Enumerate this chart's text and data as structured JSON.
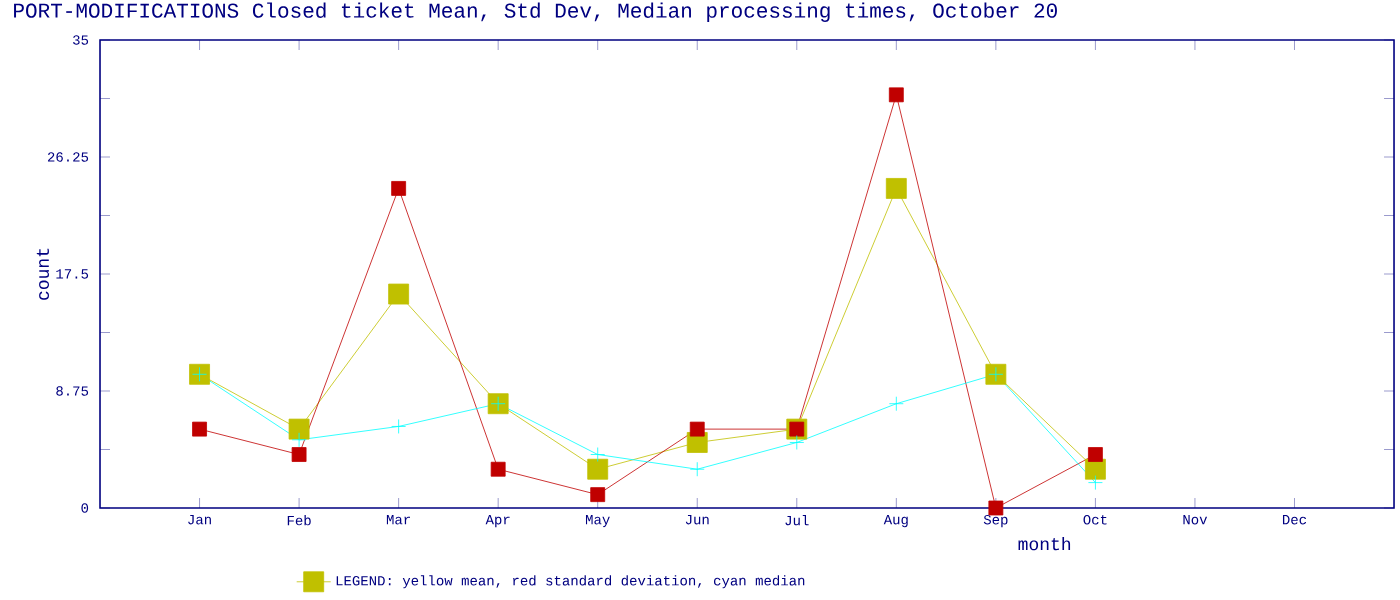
{
  "chart_data": {
    "type": "line",
    "title": "PORT-MODIFICATIONS Closed ticket Mean, Std Dev, Median processing times, October 20",
    "xlabel": "month",
    "ylabel": "count",
    "categories": [
      "Jan",
      "Feb",
      "Mar",
      "Apr",
      "May",
      "Jun",
      "Jul",
      "Aug",
      "Sep",
      "Oct",
      "Nov",
      "Dec"
    ],
    "ylim": [
      0,
      35
    ],
    "yticks": [
      0,
      {
        "value": 4.375,
        "label": null
      },
      8.75,
      {
        "value": 13.125,
        "label": null
      },
      17.5,
      {
        "value": 21.875,
        "label": null
      },
      26.25,
      {
        "value": 30.625,
        "label": null
      },
      35
    ],
    "series": [
      {
        "name": "LEGEND: yellow mean, red standard deviation, cyan median",
        "color": "#c0c000",
        "marker": "square",
        "values": [
          10.0,
          5.9,
          16.0,
          7.8,
          2.9,
          4.9,
          5.9,
          23.9,
          10.0,
          2.9,
          null,
          null
        ]
      },
      {
        "color": "#c00000",
        "marker": "square",
        "values": [
          5.9,
          4.0,
          23.9,
          2.9,
          1.0,
          5.9,
          5.9,
          30.9,
          0.0,
          4.0,
          null,
          null
        ]
      },
      {
        "color": "#00ffff",
        "marker": "cross",
        "values": [
          10.0,
          5.1,
          6.1,
          7.8,
          4.0,
          2.9,
          4.9,
          7.8,
          10.0,
          1.9,
          null,
          null
        ]
      }
    ],
    "grid": false,
    "legend": "bottom",
    "line_style": "solid"
  }
}
